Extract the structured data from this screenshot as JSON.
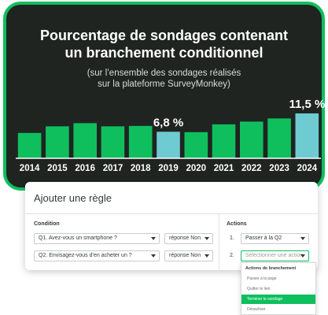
{
  "chart": {
    "title_line1": "Pourcentage de sondages contenant",
    "title_line2": "un branchement conditionnel",
    "subtitle_line1": "(sur l’ensemble des sondages réalisés",
    "subtitle_line2": "sur la plateforme SurveyMonkey)"
  },
  "chart_data": {
    "type": "bar",
    "title": "Pourcentage de sondages contenant un branchement conditionnel",
    "subtitle": "(sur l’ensemble des sondages réalisés sur la plateforme SurveyMonkey)",
    "categories": [
      "2014",
      "2015",
      "2016",
      "2017",
      "2018",
      "2019",
      "2020",
      "2021",
      "2022",
      "2023",
      "2024"
    ],
    "values": [
      6.5,
      8.2,
      9.0,
      8.2,
      8.3,
      6.8,
      6.7,
      8.7,
      9.4,
      10.2,
      11.5
    ],
    "data_labels": [
      "",
      "",
      "",
      "",
      "",
      "6,8 %",
      "",
      "",
      "",
      "",
      "11,5 %"
    ],
    "highlighted": [
      "2019",
      "2024"
    ],
    "ylim": [
      0,
      11.5
    ],
    "grid": false,
    "legend": "none",
    "colors": {
      "bar": "#0fbf5e",
      "highlight": "#6fcbd2",
      "background": "#1f2421",
      "axis": "#ffffff"
    }
  },
  "rule_builder": {
    "title": "Ajouter une règle",
    "condition_label": "Condition",
    "actions_label": "Actions",
    "conditions": [
      {
        "question": "Q1. Avez-vous un smartphone ?",
        "answer": "réponse Non"
      },
      {
        "question": "Q2. Envisagez-vous d’en acheter un ?",
        "answer": "réponse Non"
      }
    ],
    "actions": [
      {
        "number": "1.",
        "value": "Passer à la Q2"
      },
      {
        "number": "2.",
        "value": "Sélectionner une action"
      }
    ],
    "dropdown": {
      "header": "Actions de branchement",
      "items": [
        "Passer à la page",
        "Quitter le lien",
        "Terminer le sondage",
        "Désactiver"
      ],
      "highlighted_item": "Terminer le sondage"
    }
  },
  "colors": {
    "accent": "#0fbf5e",
    "dark": "#1f2421",
    "text": "#333b37"
  }
}
